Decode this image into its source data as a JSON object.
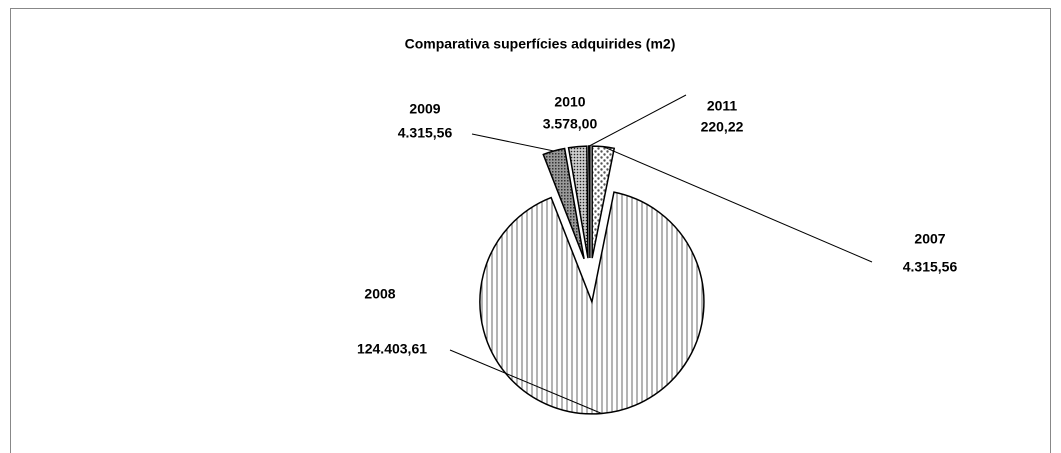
{
  "chart_data": {
    "type": "pie",
    "title": "Comparativa superfícies adquirides (m2)",
    "categories": [
      "2007",
      "2008",
      "2009",
      "2010",
      "2011"
    ],
    "values": [
      4315.56,
      124403.61,
      4315.56,
      3578.0,
      220.22
    ],
    "value_labels": [
      "4.315,56",
      "124.403,61",
      "4.315,56",
      "3.578,00",
      "220,22"
    ]
  }
}
